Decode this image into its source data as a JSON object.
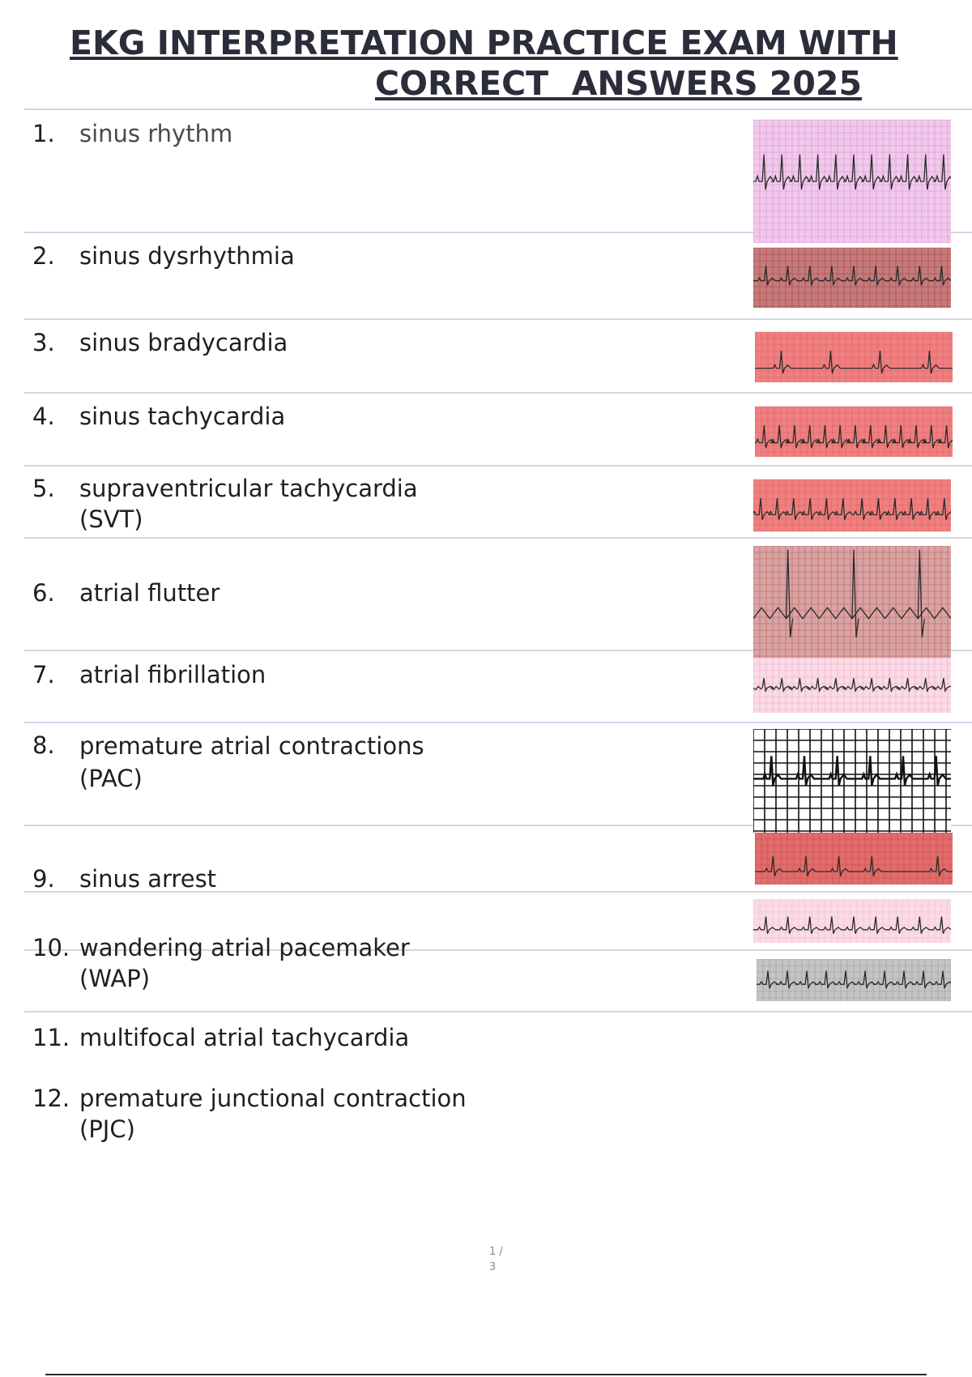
{
  "document": {
    "title_line1": "EKG INTERPRETATION PRACTICE EXAM WITH",
    "title_line2": "CORRECT  ANSWERS 2025"
  },
  "items": [
    {
      "number": "1.",
      "label": "sinus rhythm",
      "label2": ""
    },
    {
      "number": "2.",
      "label": "sinus dysrhythmia",
      "label2": ""
    },
    {
      "number": "3.",
      "label": "sinus bradycardia",
      "label2": ""
    },
    {
      "number": "4.",
      "label": "sinus tachycardia",
      "label2": ""
    },
    {
      "number": "5.",
      "label": "supraventricular tachycardia",
      "label2": "(SVT)"
    },
    {
      "number": "6.",
      "label": "atrial flutter",
      "label2": ""
    },
    {
      "number": "7.",
      "label": "atrial fibrillation",
      "label2": ""
    },
    {
      "number": "8.",
      "label": "premature atrial contractions",
      "label2": "(PAC)"
    },
    {
      "number": "9.",
      "label": "sinus arrest",
      "label2": ""
    },
    {
      "number": "10.",
      "label": "wandering atrial pacemaker",
      "label2": "(WAP)"
    },
    {
      "number": "11.",
      "label": "multifocal atrial tachycardia",
      "label2": ""
    },
    {
      "number": "12.",
      "label": "premature junctional contraction",
      "label2": "(PJC)"
    }
  ],
  "pager": {
    "current": "1 /",
    "total": "3"
  },
  "colors": {
    "pink_grid": "#f2c8ec",
    "red_grid": "#f08080",
    "dark_grid": "#b94a4a",
    "light_pink_grid": "#fadbe6",
    "gray_grid": "#c4c4c4",
    "trace": "#2a2a2a"
  }
}
